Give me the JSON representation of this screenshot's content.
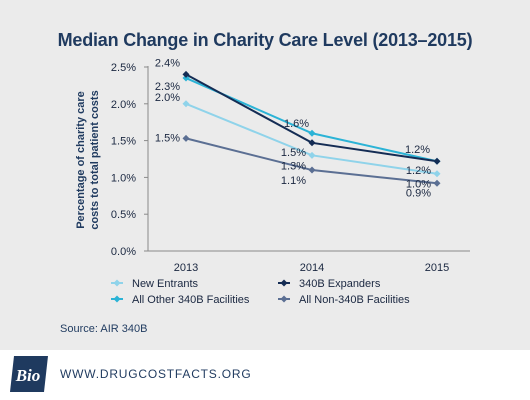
{
  "chart_data": {
    "type": "line",
    "title": "Median Change in Charity Care Level (2013–2015)",
    "ylabel_line1": "Percentage of charity care",
    "ylabel_line2": "costs to total patient costs",
    "xlabel": "",
    "categories": [
      "2013",
      "2014",
      "2015"
    ],
    "ylim": [
      0,
      2.5
    ],
    "yticks": [
      "0.0%",
      "0.5%",
      "1.0%",
      "1.5%",
      "2.0%",
      "2.5%"
    ],
    "grid": false,
    "legend_position": "bottom",
    "series": [
      {
        "name": "New Entrants",
        "values": [
          2.0,
          1.3,
          1.05
        ],
        "labels": [
          "2.0%",
          "1.3%",
          "1.0%"
        ],
        "color": "#8fd3ea"
      },
      {
        "name": "340B Expanders",
        "values": [
          2.4,
          1.47,
          1.22
        ],
        "labels": [
          "2.4%",
          "1.5%",
          "1.2%"
        ],
        "color": "#142c54"
      },
      {
        "name": "All Other 340B Facilities",
        "values": [
          2.35,
          1.6,
          1.22
        ],
        "labels": [
          "2.3%",
          "1.6%",
          "1.2%"
        ],
        "color": "#2bb3d6"
      },
      {
        "name": "All Non-340B Facilities",
        "values": [
          1.53,
          1.1,
          0.92
        ],
        "labels": [
          "1.5%",
          "1.1%",
          "0.9%"
        ],
        "color": "#5b6f93"
      }
    ]
  },
  "source": "Source: AIR 340B",
  "footer": {
    "logo_text": "Bio",
    "url": "WWW.DRUGCOSTFACTS.ORG"
  },
  "colors": {
    "background": "#ebebeb",
    "title": "#1f3a5f"
  }
}
